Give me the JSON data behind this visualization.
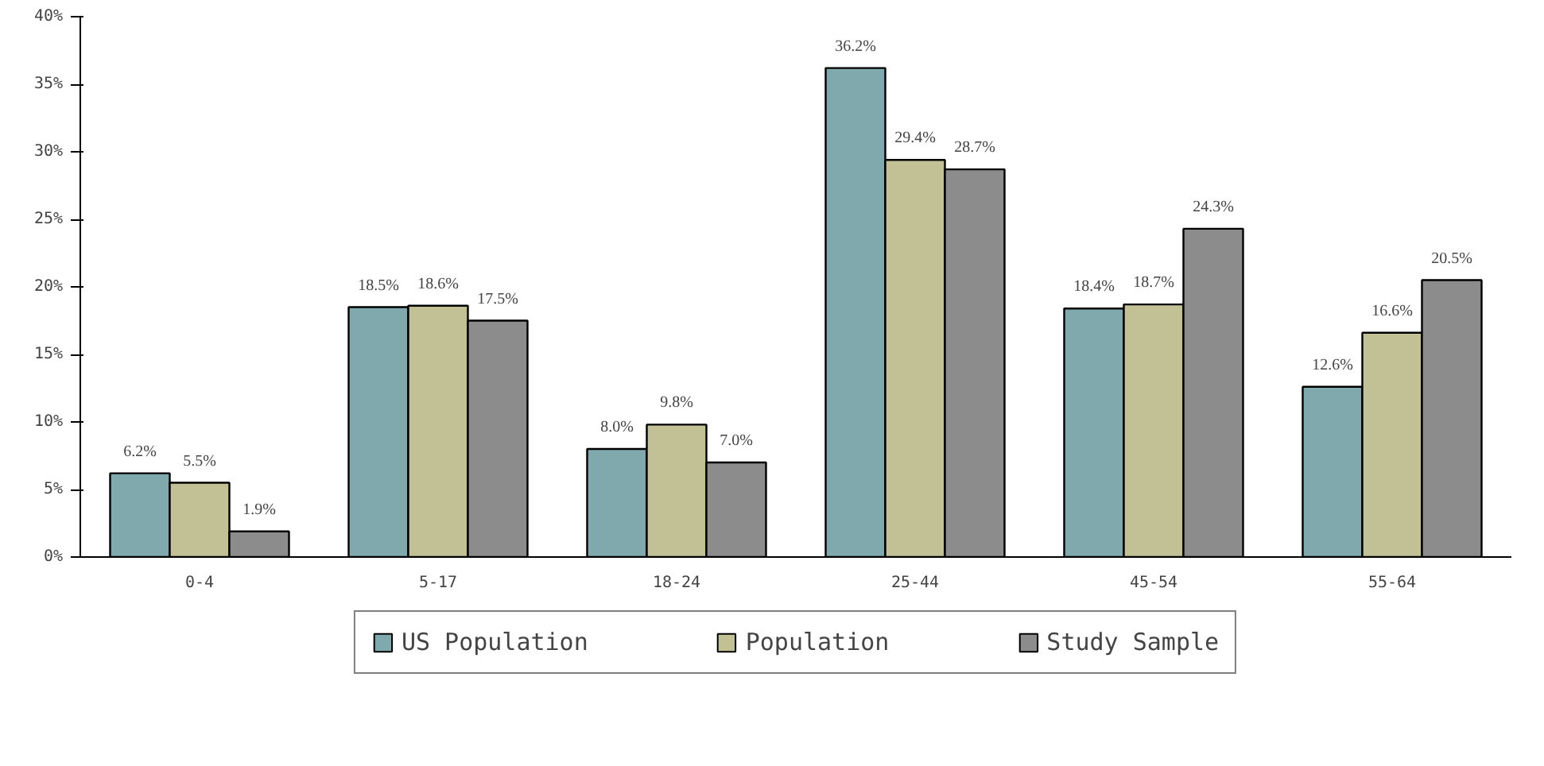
{
  "chart_data": {
    "type": "bar",
    "categories": [
      "0-4",
      "5-17",
      "18-24",
      "25-44",
      "45-54",
      "55-64"
    ],
    "series": [
      {
        "name": "US Population",
        "color": "#7fa9ad",
        "values": [
          6.2,
          18.5,
          8.0,
          36.2,
          18.4,
          12.6
        ],
        "value_labels": [
          "6.2%",
          "18.5%",
          "8.0%",
          "36.2%",
          "18.4%",
          "12.6%"
        ]
      },
      {
        "name": "Population",
        "color": "#c2c196",
        "values": [
          5.5,
          18.6,
          9.8,
          29.4,
          18.7,
          16.6
        ],
        "value_labels": [
          "5.5%",
          "18.6%",
          "9.8%",
          "29.4%",
          "18.7%",
          "16.6%"
        ]
      },
      {
        "name": "Study Sample",
        "color": "#8c8c8c",
        "values": [
          1.9,
          17.5,
          7.0,
          28.7,
          24.3,
          20.5
        ],
        "value_labels": [
          "1.9%",
          "17.5%",
          "7.0%",
          "28.7%",
          "24.3%",
          "20.5%"
        ]
      }
    ],
    "ylim": [
      0,
      40
    ],
    "yticks": [
      {
        "value": 0,
        "label": "0%"
      },
      {
        "value": 5,
        "label": "5%"
      },
      {
        "value": 10,
        "label": "10%"
      },
      {
        "value": 15,
        "label": "15%"
      },
      {
        "value": 20,
        "label": "20%"
      },
      {
        "value": 25,
        "label": "25%"
      },
      {
        "value": 30,
        "label": "30%"
      },
      {
        "value": 35,
        "label": "35%"
      },
      {
        "value": 40,
        "label": "40%"
      }
    ],
    "grid": false,
    "legend": "bottom"
  }
}
